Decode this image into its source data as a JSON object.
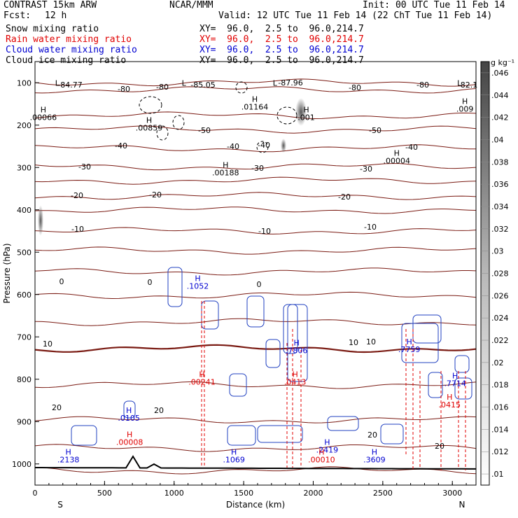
{
  "header": {
    "model": "CONTRAST 15km ARW",
    "org": "NCAR/MMM",
    "init": "Init: 00 UTC Tue 11 Feb 14",
    "fcst_label": "Fcst:",
    "fcst_value": "12 h",
    "valid": "Valid: 12 UTC Tue 11 Feb 14 (22 ChT Tue 11 Feb 14)"
  },
  "fields": [
    {
      "name": "Snow mixing ratio",
      "xy": "XY=  96.0,  2.5 to  96.0,214.7",
      "color": "#000000"
    },
    {
      "name": "Rain water mixing ratio",
      "xy": "XY=  96.0,  2.5 to  96.0,214.7",
      "color": "#e00000"
    },
    {
      "name": "Cloud water mixing ratio",
      "xy": "XY=  96.0,  2.5 to  96.0,214.7",
      "color": "#0000d0"
    },
    {
      "name": "Cloud ice mixing ratio",
      "xy": "XY=  96.0,  2.5 to  96.0,214.7",
      "color": "#000000"
    }
  ],
  "chart_data": {
    "type": "contour",
    "xlabel": "Distance (km)",
    "ylabel": "Pressure (hPa)",
    "xlim": [
      0,
      3170
    ],
    "ylim": [
      1050,
      50
    ],
    "x_ticks": [
      "0",
      "500",
      "1000",
      "1500",
      "2000",
      "2500",
      "3000"
    ],
    "y_ticks": [
      "100",
      "200",
      "300",
      "400",
      "500",
      "600",
      "700",
      "800",
      "900",
      "1000"
    ],
    "left_end": "S",
    "right_end": "N",
    "colorbar": {
      "unit": "g kg⁻¹",
      "levels": [
        ".01",
        ".012",
        ".014",
        ".016",
        ".018",
        ".02",
        ".022",
        ".024",
        ".026",
        ".028",
        ".03",
        ".032",
        ".034",
        ".036",
        ".038",
        ".04",
        ".042",
        ".044",
        ".046"
      ]
    },
    "temperature_labels": [
      "-84.77",
      "-80",
      "-80",
      "-85.05",
      "-87.96",
      "-80",
      "-80",
      "-82.1",
      "-50",
      "-50",
      "-40",
      "-40",
      "-40",
      "-40",
      "-30",
      "-30",
      "-30",
      "-20",
      "-20",
      "-20",
      "-10",
      "-10",
      "-10",
      "0",
      "0",
      "0",
      "10",
      "10",
      "10",
      "20",
      "20",
      "20",
      "20"
    ],
    "annotations": [
      {
        "marker": "L",
        "x": 160,
        "p": 107
      },
      {
        "marker": "L",
        "x": 1070,
        "p": 107
      },
      {
        "marker": "L",
        "x": 1725,
        "p": 107
      },
      {
        "marker": "L",
        "x": 3050,
        "p": 107
      },
      {
        "marker": "H",
        "value": ".00066",
        "x": 60,
        "p": 170,
        "color": "#000000"
      },
      {
        "marker": "H",
        "value": ".00859",
        "x": 820,
        "p": 195,
        "color": "#000000"
      },
      {
        "marker": "H",
        "value": ".01164",
        "x": 1580,
        "p": 145,
        "color": "#000000"
      },
      {
        "marker": "H",
        "value": ".001",
        "x": 1950,
        "p": 170,
        "color": "#000000"
      },
      {
        "marker": "H",
        "value": ".00004",
        "x": 2600,
        "p": 272,
        "color": "#000000"
      },
      {
        "marker": "H",
        "value": ".00188",
        "x": 1370,
        "p": 300,
        "color": "#000000"
      },
      {
        "marker": "H",
        "value": ".009",
        "x": 3090,
        "p": 150,
        "color": "#000000"
      },
      {
        "marker": "H",
        "value": ".1052",
        "x": 1170,
        "p": 568,
        "color": "#0000d0"
      },
      {
        "marker": "H",
        "value": ".7806",
        "x": 1880,
        "p": 720,
        "color": "#0000d0"
      },
      {
        "marker": "H",
        "value": ".7759",
        "x": 2690,
        "p": 718,
        "color": "#0000d0"
      },
      {
        "marker": "H",
        "value": ".7714",
        "x": 3020,
        "p": 798,
        "color": "#0000d0"
      },
      {
        "marker": "H",
        "value": ".0105",
        "x": 675,
        "p": 880,
        "color": "#0000d0"
      },
      {
        "marker": "H",
        "value": ".2138",
        "x": 240,
        "p": 978,
        "color": "#0000d0"
      },
      {
        "marker": "H",
        "value": ".1069",
        "x": 1430,
        "p": 978,
        "color": "#0000d0"
      },
      {
        "marker": "H",
        "value": ".2419",
        "x": 2100,
        "p": 955,
        "color": "#0000d0"
      },
      {
        "marker": "H",
        "value": ".3609",
        "x": 2440,
        "p": 978,
        "color": "#0000d0"
      },
      {
        "marker": "H",
        "value": ".00241",
        "x": 1200,
        "p": 795,
        "color": "#e00000"
      },
      {
        "marker": "H",
        "value": ".0413",
        "x": 1870,
        "p": 795,
        "color": "#e00000"
      },
      {
        "marker": "H",
        "value": ".0415",
        "x": 2980,
        "p": 848,
        "color": "#e00000"
      },
      {
        "marker": "H",
        "value": ".00008",
        "x": 680,
        "p": 937,
        "color": "#e00000"
      },
      {
        "marker": "H",
        "value": ".00010",
        "x": 2060,
        "p": 978,
        "color": "#e00000"
      }
    ]
  }
}
